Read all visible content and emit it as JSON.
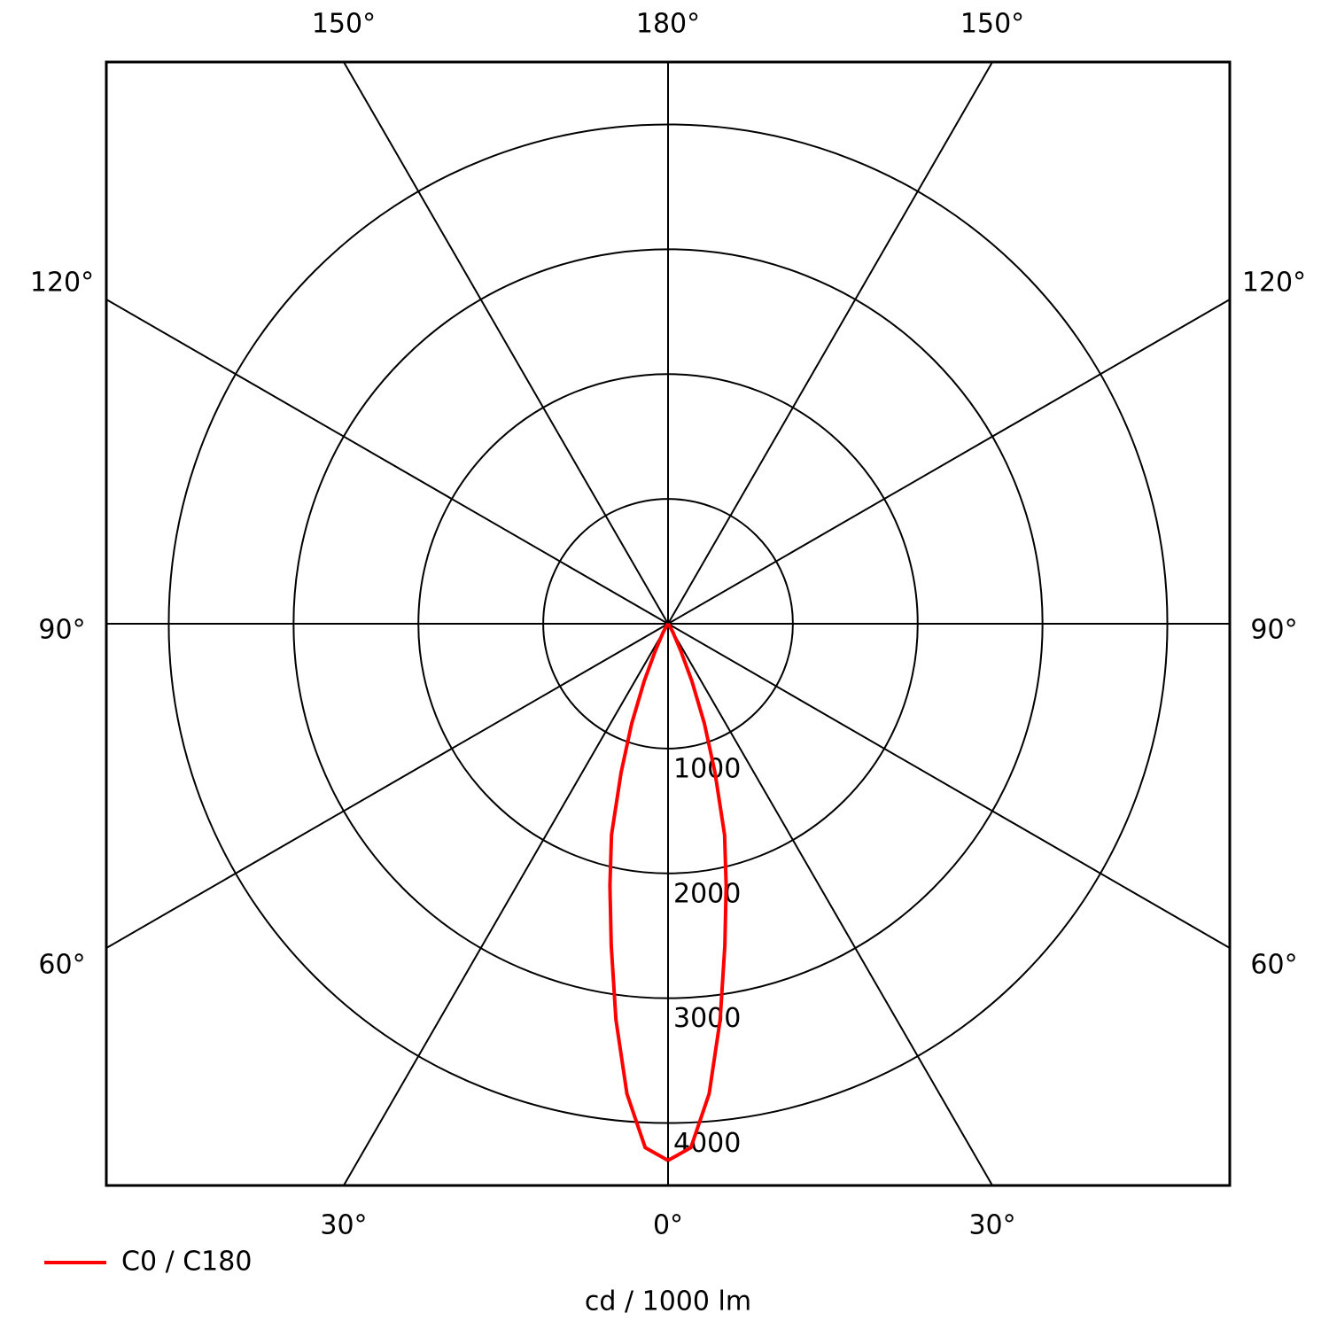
{
  "chart_data": {
    "type": "polar",
    "angle_ticks": [
      {
        "value": 0,
        "label": "0°"
      },
      {
        "value": 30,
        "label": "30°"
      },
      {
        "value": 60,
        "label": "60°"
      },
      {
        "value": 90,
        "label": "90°"
      },
      {
        "value": 120,
        "label": "120°"
      },
      {
        "value": 150,
        "label": "150°"
      },
      {
        "value": 180,
        "label": "180°"
      }
    ],
    "rlim": [
      0,
      4500
    ],
    "rticks": [
      1000,
      2000,
      3000,
      4000
    ],
    "angles": [
      0,
      2.5,
      5,
      7.5,
      10,
      12.5,
      15,
      17.5,
      20,
      22.5,
      25,
      30,
      35,
      40,
      45
    ],
    "series": [
      {
        "name": "C0 / C180",
        "color": "#ff0000",
        "values": [
          4300,
          4200,
          3780,
          3200,
          2620,
          2150,
          1750,
          1250,
          850,
          500,
          250,
          80,
          20,
          0,
          0
        ]
      }
    ],
    "unit_label": "cd / 1000 lm"
  }
}
